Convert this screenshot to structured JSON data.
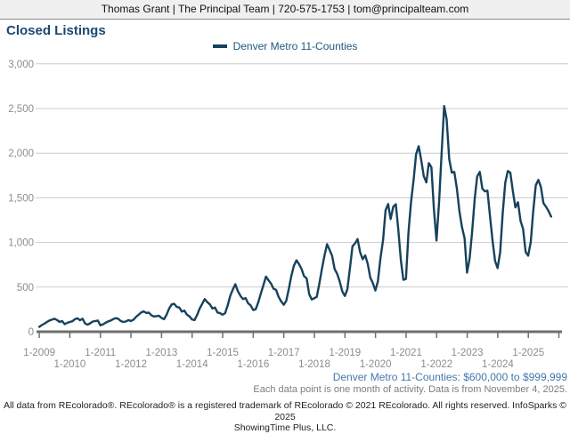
{
  "header": {
    "contact_line": "Thomas Grant | The Principal Team | 720-575-1753 | tom@principalteam.com"
  },
  "title": "Closed Listings",
  "legend": {
    "label": "Denver Metro 11-Counties"
  },
  "footnotes": {
    "range_label": "Denver Metro 11-Counties: $600,000 to $999,999",
    "data_note": "Each data point is one month of activity. Data is from November 4, 2025.",
    "copyright_line1": "All data from REcolorado®. REcolorado® is a registered trademark of REcolorado © 2021 REcolorado. All rights reserved. InfoSparks © 2025",
    "copyright_line2": "ShowingTime Plus, LLC."
  },
  "colors": {
    "series": "#16425c",
    "title_text": "#1a4a73",
    "legend_text": "#1d5a7d",
    "range_text": "#4577ad",
    "note_text": "#7d7d7d",
    "axis_text": "#8c8c8c",
    "axis_line": "#6e6e6e",
    "gridline": "#cccccc",
    "header_bg": "#f0f0f0"
  },
  "chart_data": {
    "type": "line",
    "title": "Closed Listings",
    "ylabel": "",
    "xlabel": "",
    "ylim": [
      0,
      3000
    ],
    "y_ticks": [
      0,
      500,
      1000,
      1500,
      2000,
      2500,
      3000
    ],
    "grid": "horizontal",
    "legend_position": "top-center",
    "x_tick_labels": [
      "1-2009",
      "1-2010",
      "1-2011",
      "1-2012",
      "1-2013",
      "1-2014",
      "1-2015",
      "1-2016",
      "1-2017",
      "1-2018",
      "1-2019",
      "1-2020",
      "1-2021",
      "1-2022",
      "1-2023",
      "1-2024",
      "1-2025"
    ],
    "x_label_note": "monthly points, Jan 2009 - Oct 2025",
    "series": [
      {
        "name": "Denver Metro 11-Counties",
        "start_month": "2009-01",
        "end_month": "2025-10",
        "values": [
          55,
          75,
          90,
          110,
          125,
          135,
          145,
          130,
          110,
          120,
          85,
          100,
          110,
          118,
          140,
          150,
          128,
          145,
          92,
          80,
          95,
          115,
          120,
          125,
          72,
          82,
          100,
          115,
          125,
          140,
          152,
          145,
          120,
          110,
          115,
          130,
          120,
          135,
          165,
          190,
          215,
          228,
          210,
          215,
          185,
          170,
          175,
          178,
          155,
          140,
          190,
          260,
          306,
          313,
          278,
          271,
          225,
          236,
          190,
          172,
          137,
          130,
          190,
          260,
          313,
          366,
          331,
          306,
          260,
          271,
          215,
          208,
          190,
          208,
          296,
          401,
          472,
          532,
          454,
          401,
          366,
          377,
          320,
          296,
          243,
          252,
          330,
          425,
          520,
          618,
          578,
          540,
          482,
          468,
          390,
          340,
          302,
          345,
          480,
          625,
          740,
          800,
          758,
          702,
          622,
          598,
          420,
          362,
          375,
          392,
          540,
          700,
          852,
          980,
          918,
          850,
          702,
          648,
          560,
          452,
          400,
          475,
          710,
          958,
          988,
          1038,
          892,
          812,
          855,
          760,
          605,
          545,
          462,
          565,
          825,
          1025,
          1360,
          1430,
          1262,
          1398,
          1428,
          1145,
          800,
          582,
          592,
          1120,
          1450,
          1700,
          1988,
          2078,
          1920,
          1742,
          1672,
          1888,
          1842,
          1372,
          1022,
          1450,
          1990,
          2528,
          2378,
          1932,
          1782,
          1790,
          1602,
          1352,
          1172,
          1048,
          662,
          820,
          1120,
          1488,
          1740,
          1790,
          1602,
          1572,
          1580,
          1302,
          1022,
          792,
          712,
          890,
          1320,
          1668,
          1800,
          1782,
          1570,
          1392,
          1450,
          1240,
          1152,
          892,
          852,
          1002,
          1350,
          1640,
          1700,
          1622,
          1440,
          1400,
          1352,
          1290
        ]
      }
    ]
  }
}
